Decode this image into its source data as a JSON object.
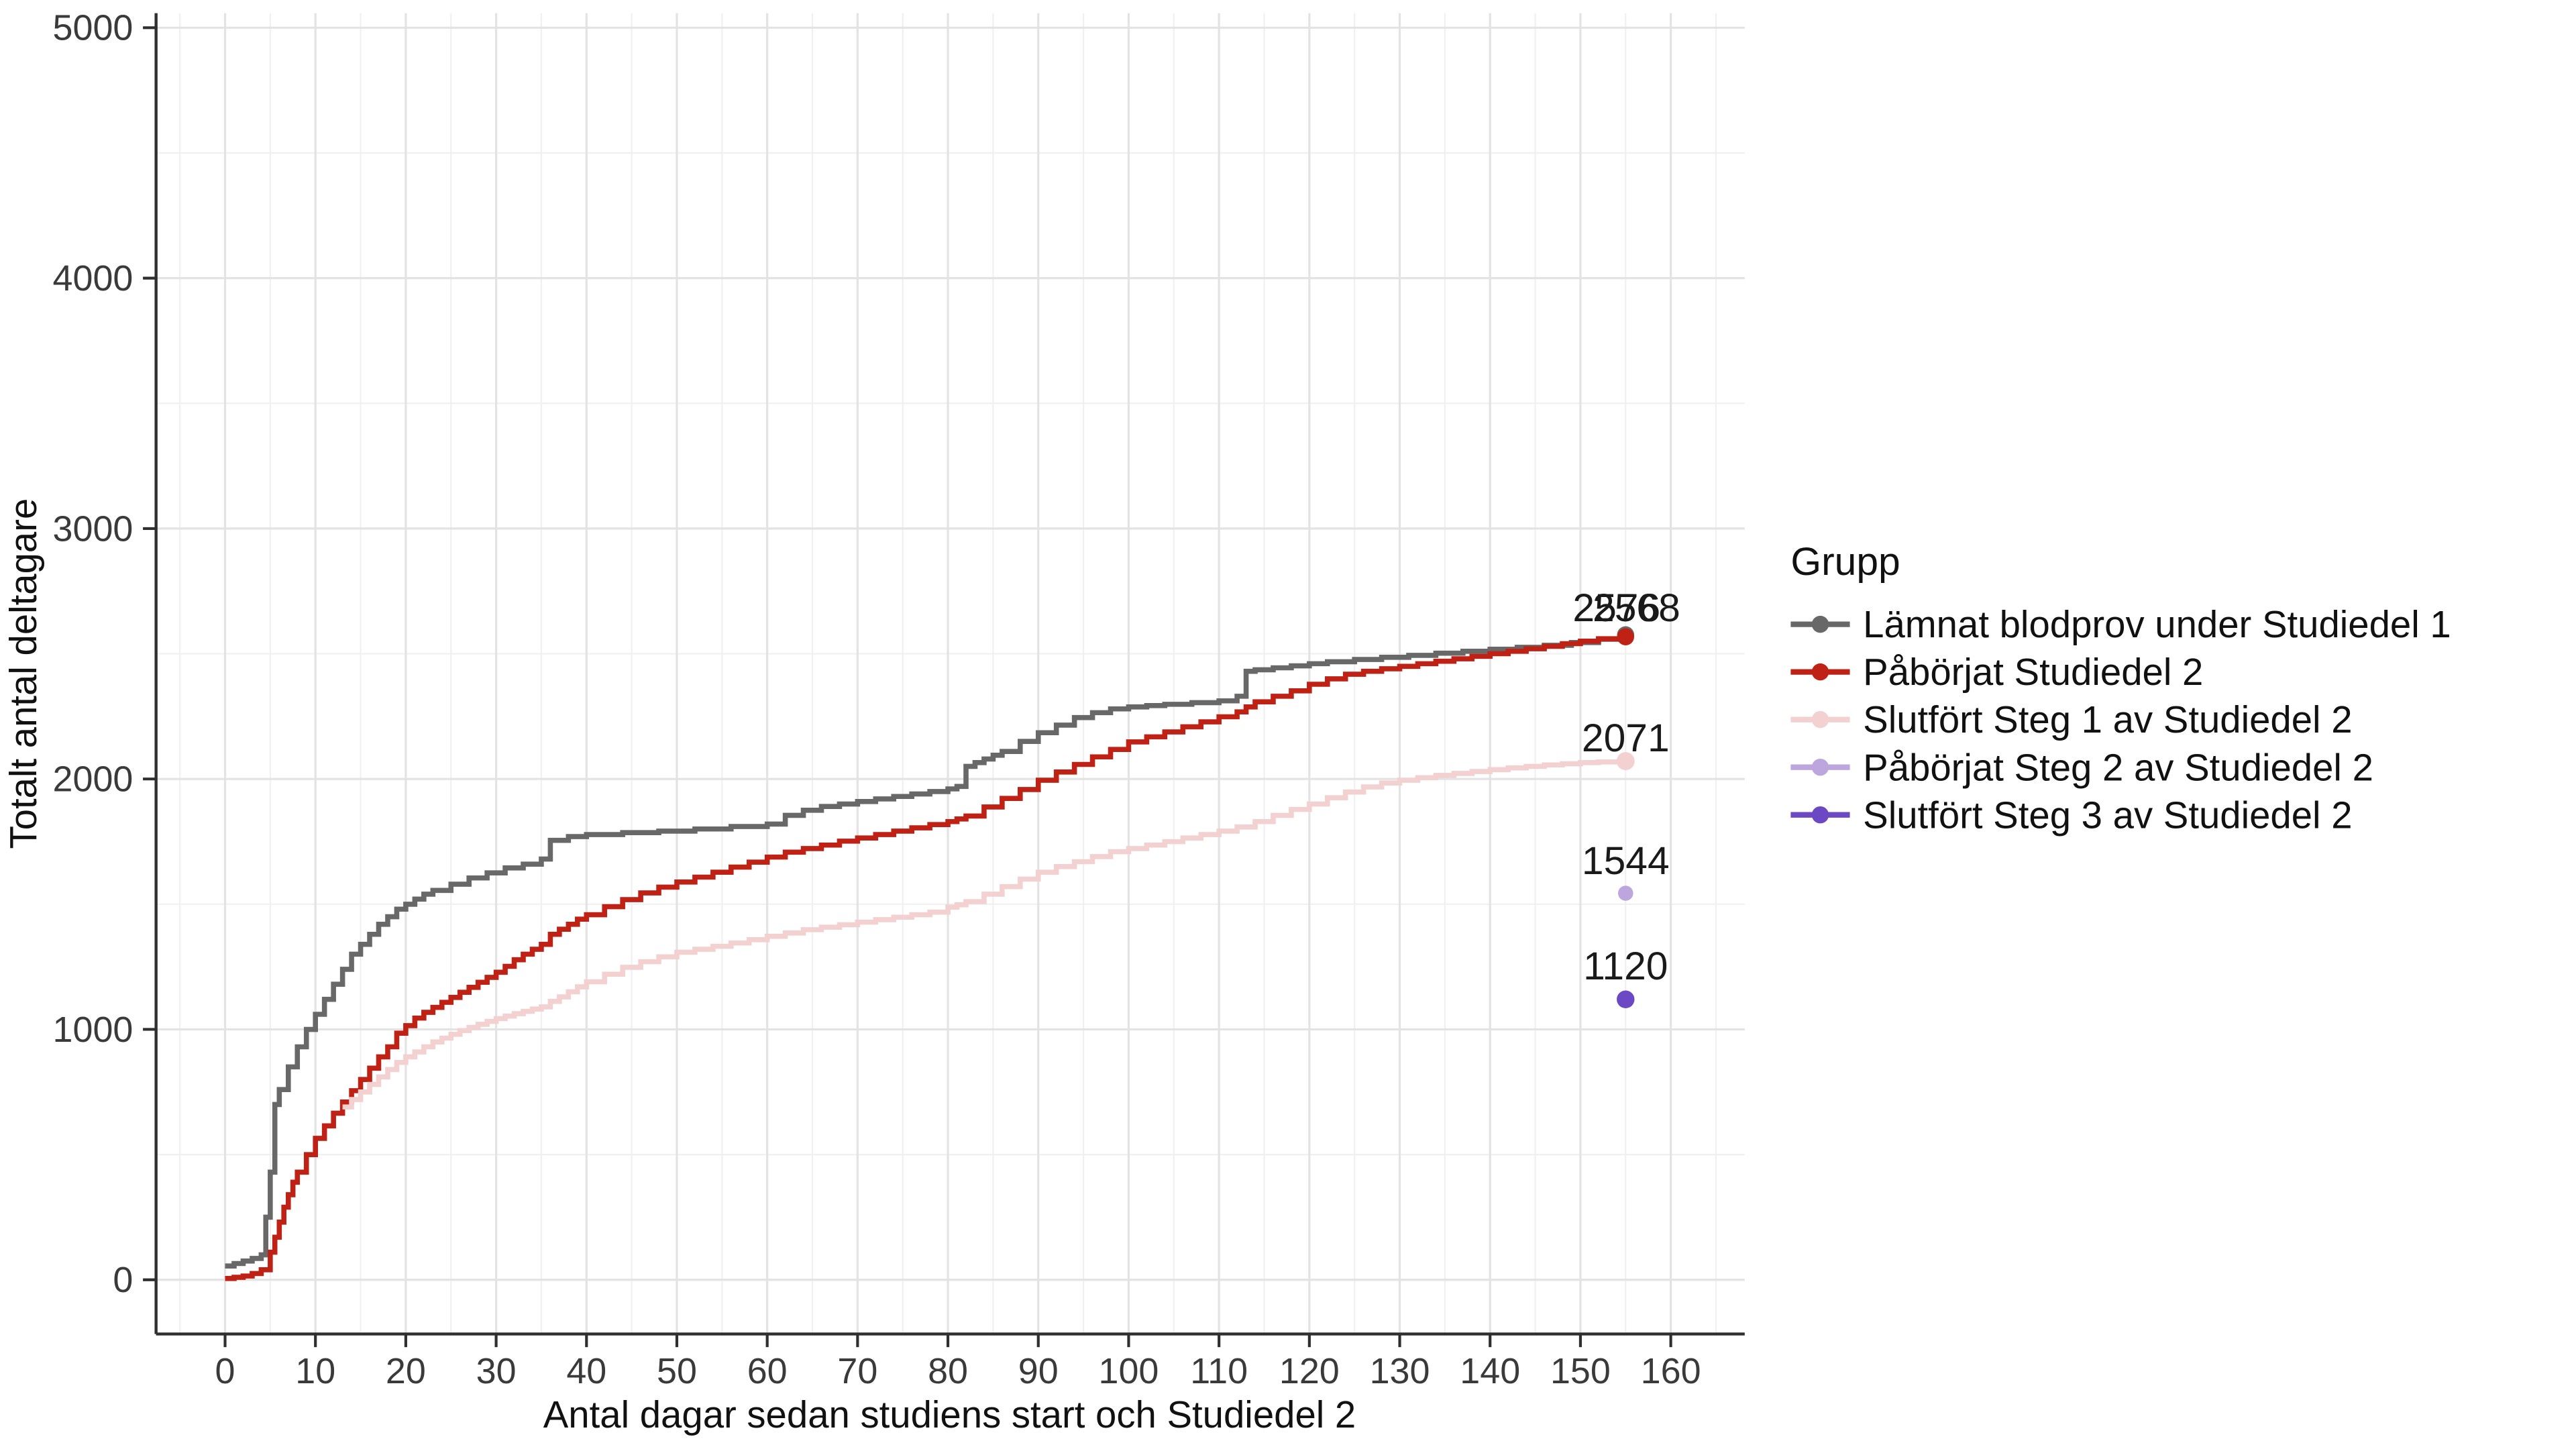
{
  "figure": {
    "background": "#ffffff",
    "grid_major_color": "#e3e3e3",
    "grid_minor_color": "#f0f0f0",
    "axis_color": "#2f2f2f"
  },
  "legend": {
    "title": "Grupp",
    "items": [
      {
        "label": "Lämnat blodprov under Studiedel 1",
        "color": "#686868"
      },
      {
        "label": "Påbörjat Studiedel 2",
        "color": "#bf2114"
      },
      {
        "label": "Slutfört Steg 1 av Studiedel 2",
        "color": "#f3d1d1"
      },
      {
        "label": "Påbörjat Steg 2 av Studiedel 2",
        "color": "#bda6de"
      },
      {
        "label": "Slutfört Steg 3 av Studiedel 2",
        "color": "#6c48c4"
      }
    ]
  },
  "chart_data": {
    "type": "line",
    "subtype": "cumulative-step",
    "title": "",
    "xlabel": "Antal dagar sedan studiens start och Studiedel 2",
    "ylabel": "Totalt antal deltagare",
    "xlim": [
      -8,
      168
    ],
    "ylim": [
      -220,
      5060
    ],
    "xticks": [
      0,
      10,
      20,
      30,
      40,
      50,
      60,
      70,
      80,
      90,
      100,
      110,
      120,
      130,
      140,
      150,
      160
    ],
    "yticks": [
      0,
      1000,
      2000,
      3000,
      4000,
      5000
    ],
    "minor_xticks": [
      -5,
      5,
      15,
      25,
      35,
      45,
      55,
      65,
      75,
      85,
      95,
      105,
      115,
      125,
      135,
      145,
      155,
      165
    ],
    "minor_yticks": [
      500,
      1500,
      2500,
      3500,
      4500
    ],
    "grid": true,
    "legend_position": "right",
    "series": [
      {
        "name": "Lämnat blodprov under Studiedel 1",
        "color": "#686868",
        "step": true,
        "marker_r": 5.2,
        "x": [
          0,
          1,
          2,
          3,
          4,
          4.5,
          5,
          5.5,
          6,
          7,
          8,
          9,
          10,
          11,
          12,
          13,
          14,
          15,
          16,
          17,
          18,
          19,
          20,
          21,
          22,
          23,
          25,
          27,
          29,
          31,
          33,
          35,
          36,
          38,
          40,
          44,
          48,
          52,
          56,
          60,
          62,
          64,
          66,
          68,
          70,
          72,
          74,
          76,
          78,
          80,
          81,
          82,
          83,
          84,
          85,
          86,
          88,
          90,
          92,
          94,
          96,
          98,
          100,
          102,
          104,
          107,
          110,
          112,
          113,
          114,
          116,
          118,
          120,
          122,
          125,
          128,
          131,
          134,
          137,
          140,
          143,
          146,
          149,
          152,
          155
        ],
        "y": [
          55,
          65,
          75,
          85,
          100,
          250,
          430,
          700,
          760,
          850,
          930,
          1000,
          1060,
          1120,
          1180,
          1240,
          1300,
          1340,
          1380,
          1420,
          1450,
          1480,
          1500,
          1520,
          1540,
          1555,
          1580,
          1605,
          1625,
          1645,
          1660,
          1680,
          1755,
          1770,
          1778,
          1786,
          1792,
          1800,
          1810,
          1820,
          1855,
          1875,
          1890,
          1900,
          1910,
          1920,
          1930,
          1940,
          1950,
          1960,
          1970,
          2050,
          2065,
          2080,
          2095,
          2110,
          2150,
          2185,
          2215,
          2245,
          2265,
          2280,
          2288,
          2293,
          2298,
          2305,
          2312,
          2330,
          2430,
          2436,
          2444,
          2452,
          2460,
          2468,
          2477,
          2486,
          2494,
          2502,
          2510,
          2518,
          2526,
          2534,
          2545,
          2558,
          2576
        ]
      },
      {
        "name": "Påbörjat Studiedel 2",
        "color": "#bf2114",
        "step": true,
        "marker_r": 5.2,
        "x": [
          0,
          1,
          2,
          3,
          4,
          5,
          5.5,
          6,
          6.5,
          7,
          7.5,
          8,
          9,
          10,
          11,
          12,
          13,
          14,
          15,
          16,
          17,
          18,
          19,
          20,
          21,
          22,
          23,
          24,
          25,
          26,
          27,
          28,
          29,
          30,
          31,
          32,
          33,
          34,
          35,
          36,
          37,
          38,
          39,
          40,
          42,
          44,
          46,
          48,
          50,
          52,
          54,
          56,
          58,
          60,
          62,
          64,
          66,
          68,
          70,
          72,
          74,
          76,
          78,
          80,
          81,
          82,
          84,
          86,
          88,
          90,
          92,
          94,
          96,
          98,
          100,
          102,
          104,
          106,
          108,
          110,
          112,
          113,
          114,
          116,
          118,
          120,
          122,
          124,
          126,
          128,
          130,
          132,
          134,
          136,
          138,
          140,
          142,
          144,
          146,
          148,
          150,
          152,
          155
        ],
        "y": [
          5,
          10,
          15,
          25,
          40,
          110,
          170,
          230,
          290,
          340,
          390,
          430,
          500,
          565,
          615,
          665,
          710,
          755,
          800,
          845,
          890,
          930,
          985,
          1015,
          1045,
          1068,
          1088,
          1108,
          1128,
          1148,
          1168,
          1188,
          1208,
          1228,
          1252,
          1278,
          1300,
          1320,
          1340,
          1380,
          1400,
          1420,
          1440,
          1458,
          1490,
          1518,
          1545,
          1568,
          1588,
          1608,
          1628,
          1648,
          1668,
          1688,
          1708,
          1722,
          1736,
          1752,
          1764,
          1778,
          1792,
          1805,
          1818,
          1830,
          1840,
          1852,
          1888,
          1922,
          1958,
          1995,
          2028,
          2058,
          2088,
          2118,
          2148,
          2168,
          2188,
          2208,
          2228,
          2248,
          2268,
          2288,
          2308,
          2330,
          2352,
          2378,
          2400,
          2418,
          2430,
          2440,
          2450,
          2460,
          2470,
          2480,
          2490,
          2500,
          2510,
          2520,
          2530,
          2540,
          2550,
          2560,
          2568
        ]
      },
      {
        "name": "Slutfört Steg 1 av Studiedel 2",
        "color": "#f3d1d1",
        "step": true,
        "marker_r": 5.5,
        "x": [
          13,
          14,
          15,
          16,
          17,
          18,
          19,
          20,
          21,
          22,
          23,
          24,
          25,
          26,
          27,
          28,
          29,
          30,
          31,
          32,
          33,
          34,
          35,
          36,
          37,
          38,
          39,
          40,
          42,
          44,
          46,
          48,
          50,
          52,
          54,
          56,
          58,
          60,
          62,
          64,
          66,
          68,
          70,
          72,
          74,
          76,
          78,
          80,
          81,
          82,
          84,
          86,
          88,
          90,
          92,
          94,
          96,
          98,
          100,
          102,
          104,
          106,
          108,
          110,
          112,
          114,
          116,
          118,
          120,
          122,
          124,
          126,
          128,
          130,
          132,
          134,
          136,
          138,
          140,
          142,
          144,
          146,
          148,
          150,
          152,
          155
        ],
        "y": [
          690,
          720,
          750,
          780,
          810,
          840,
          868,
          890,
          910,
          930,
          950,
          965,
          980,
          995,
          1008,
          1020,
          1032,
          1043,
          1053,
          1063,
          1072,
          1081,
          1090,
          1112,
          1130,
          1150,
          1170,
          1190,
          1220,
          1248,
          1270,
          1290,
          1308,
          1320,
          1332,
          1345,
          1358,
          1372,
          1385,
          1398,
          1408,
          1418,
          1428,
          1438,
          1448,
          1458,
          1468,
          1488,
          1498,
          1510,
          1540,
          1570,
          1600,
          1628,
          1650,
          1670,
          1690,
          1710,
          1722,
          1736,
          1750,
          1764,
          1778,
          1792,
          1808,
          1830,
          1855,
          1878,
          1900,
          1925,
          1948,
          1968,
          1984,
          1995,
          2005,
          2014,
          2022,
          2030,
          2037,
          2044,
          2050,
          2056,
          2061,
          2065,
          2068,
          2071
        ]
      },
      {
        "name": "Påbörjat Steg 2 av Studiedel 2",
        "color": "#bda6de",
        "step": false,
        "marker_r": 4.6,
        "x": [
          155
        ],
        "y": [
          1544
        ]
      },
      {
        "name": "Slutfört Steg 3 av Studiedel 2",
        "color": "#6c48c4",
        "step": false,
        "marker_r": 5.4,
        "x": [
          155
        ],
        "y": [
          1120
        ]
      }
    ],
    "annotations": [
      {
        "text": "2576",
        "x": 154.0,
        "y": 2630,
        "color": "#686868"
      },
      {
        "text": "2568",
        "x": 156.2,
        "y": 2630,
        "color": "#bf2114"
      },
      {
        "text": "2071",
        "x": 155.0,
        "y": 2110,
        "color": "#f3d1d1"
      },
      {
        "text": "1544",
        "x": 155.0,
        "y": 1620,
        "color": "#bda6de"
      },
      {
        "text": "1120",
        "x": 155.0,
        "y": 1200,
        "color": "#6c48c4"
      }
    ]
  }
}
